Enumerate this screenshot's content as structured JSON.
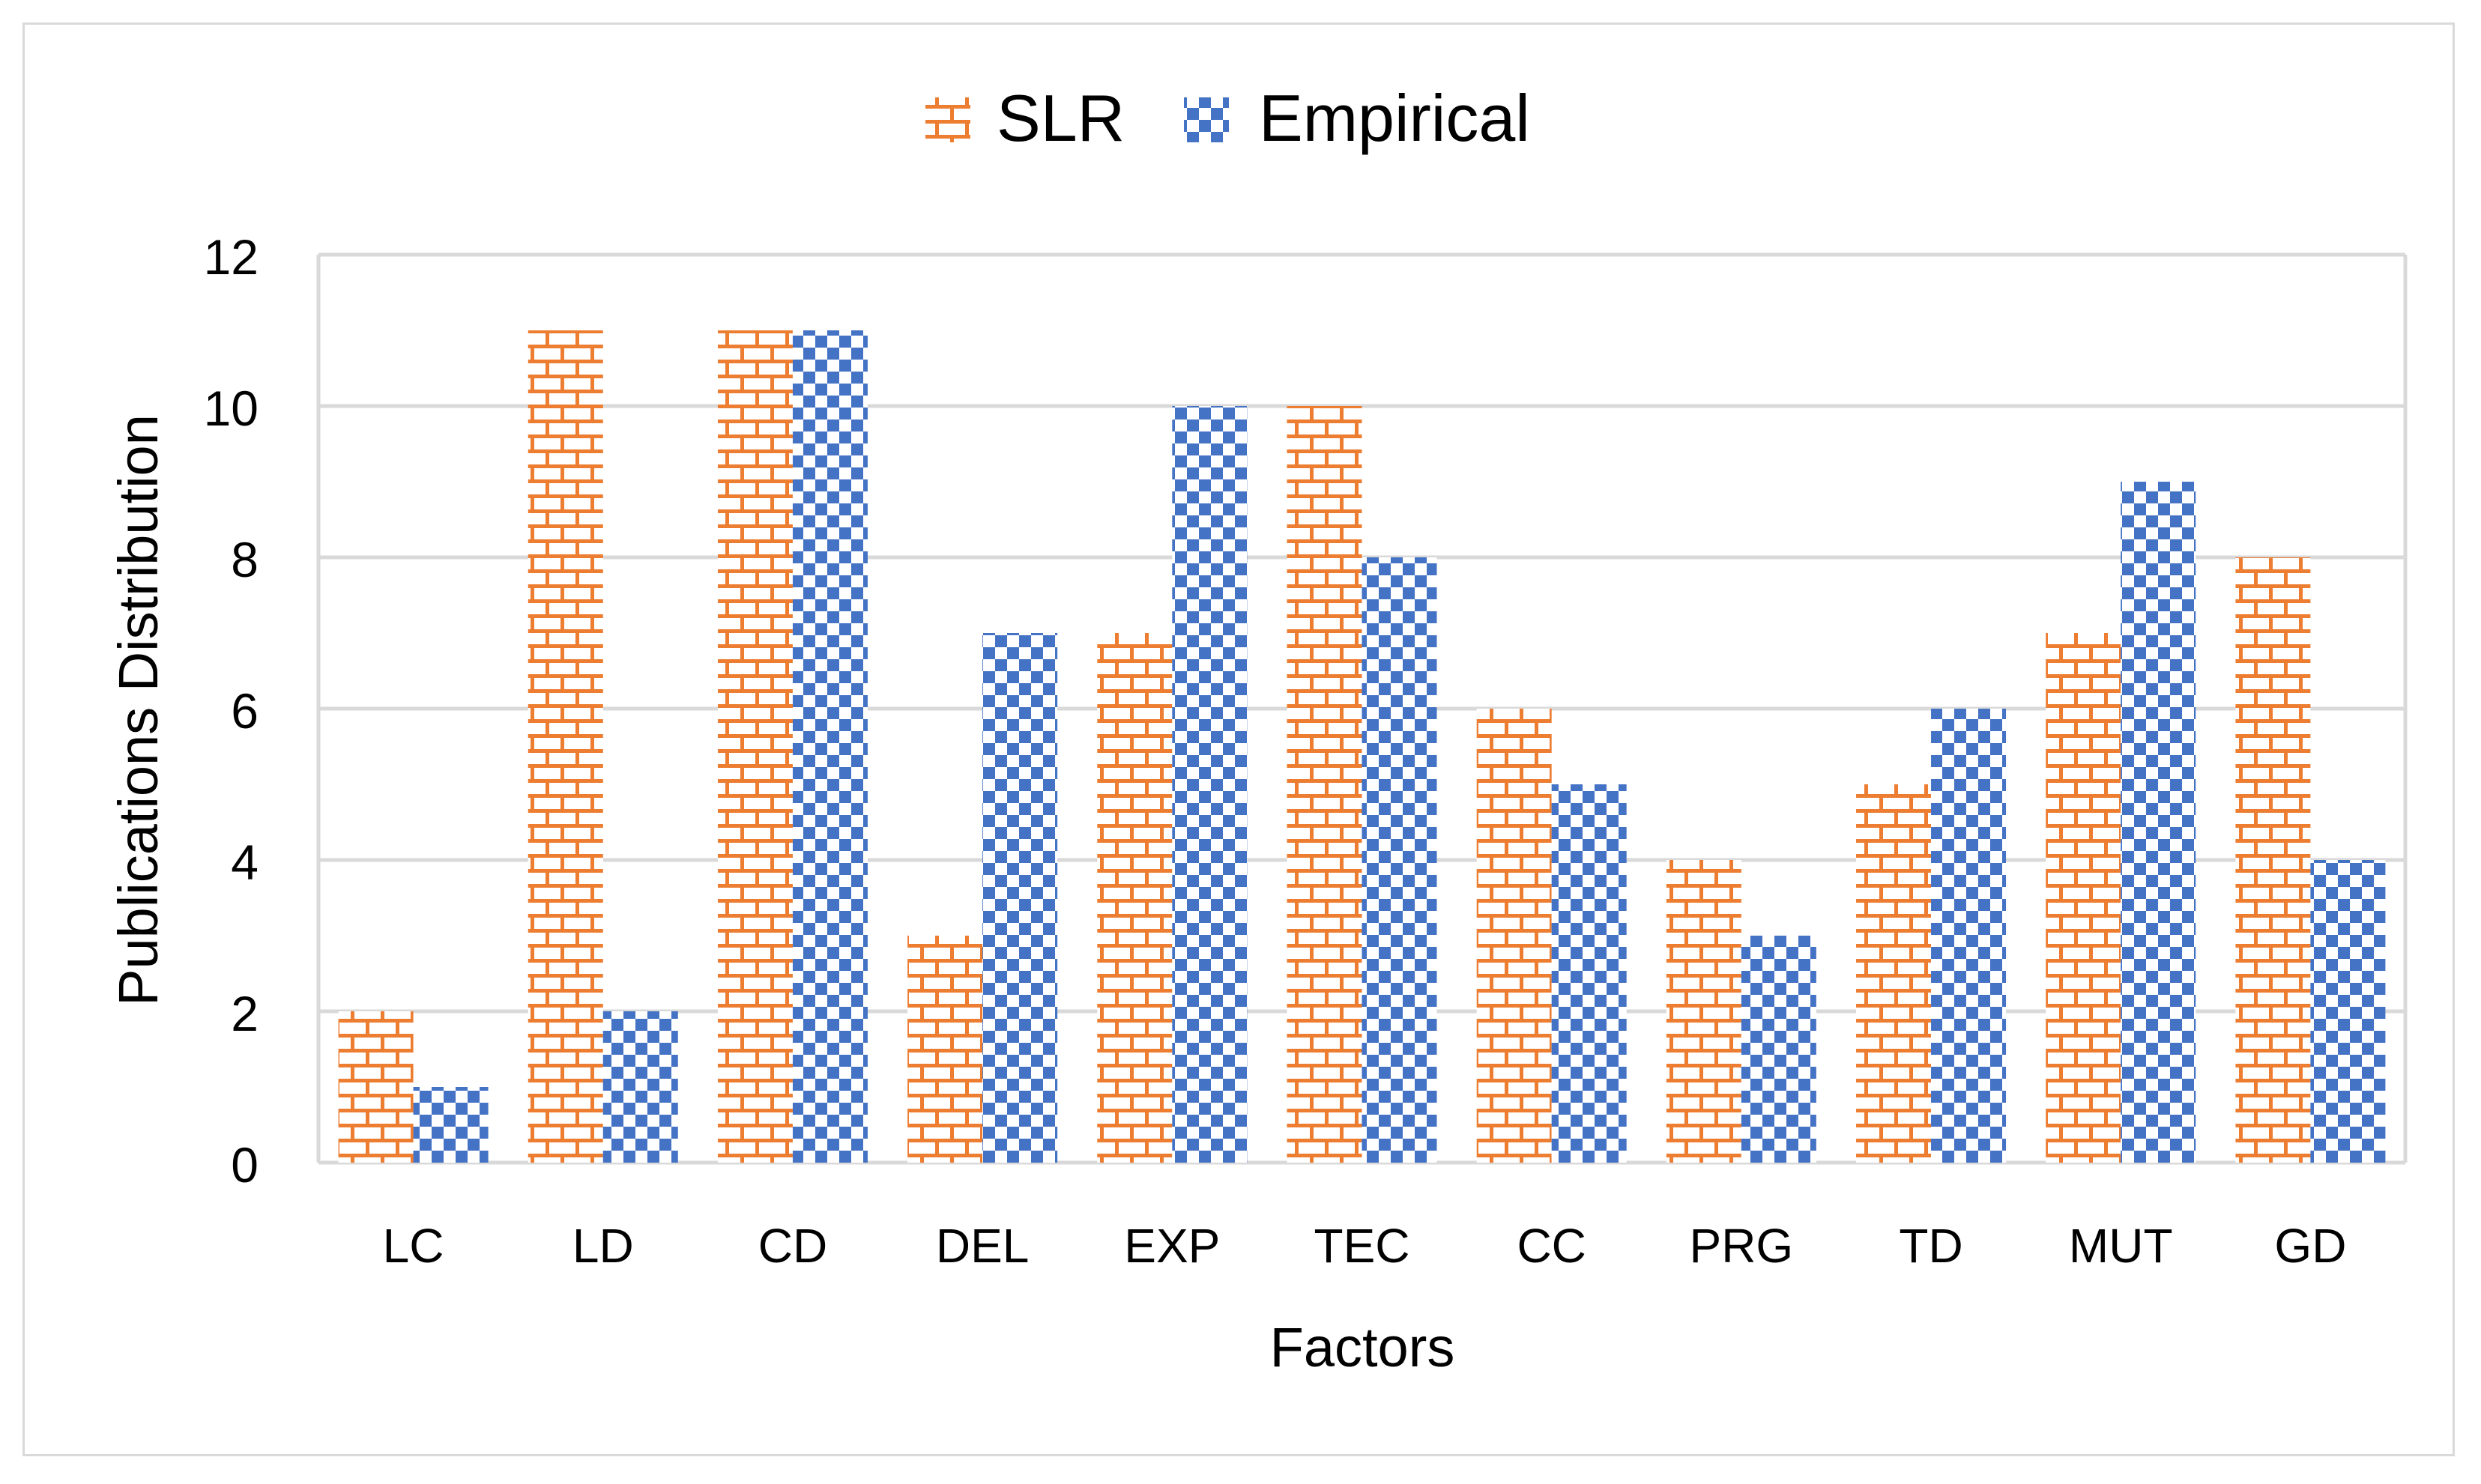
{
  "chart_data": {
    "type": "bar",
    "title": "",
    "xlabel": "Factors",
    "ylabel": "Publications Distribution",
    "ylim": [
      0,
      12
    ],
    "yticks": [
      0,
      2,
      4,
      6,
      8,
      10,
      12
    ],
    "grid": true,
    "legend_position": "top-center",
    "categories": [
      "LC",
      "LD",
      "CD",
      "DEL",
      "EXP",
      "TEC",
      "CC",
      "PRG",
      "TD",
      "MUT",
      "GD"
    ],
    "series": [
      {
        "name": "SLR",
        "color": "#ed7d31",
        "pattern": "brick",
        "values": [
          2,
          11,
          11,
          3,
          7,
          10,
          6,
          4,
          5,
          7,
          8
        ]
      },
      {
        "name": "Empirical",
        "color": "#4472c4",
        "pattern": "checker",
        "values": [
          1,
          2,
          11,
          7,
          10,
          8,
          5,
          3,
          6,
          9,
          4
        ]
      }
    ]
  }
}
